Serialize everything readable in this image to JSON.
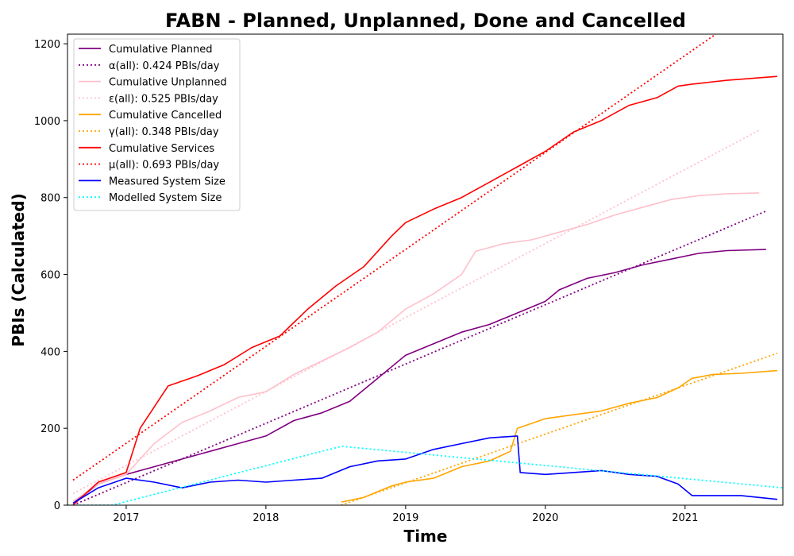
{
  "chart_data": {
    "type": "line",
    "title": "FABN - Planned, Unplanned, Done  and Cancelled",
    "xlabel": "Time",
    "ylabel": "PBIs (Calculated)",
    "xlim": [
      2016.58,
      2021.7
    ],
    "ylim": [
      0,
      1225
    ],
    "x_ticks": [
      2017,
      2018,
      2019,
      2020,
      2021
    ],
    "x_tick_labels": [
      "2017",
      "2018",
      "2019",
      "2020",
      "2021"
    ],
    "y_ticks": [
      0,
      200,
      400,
      600,
      800,
      1000,
      1200
    ],
    "y_tick_labels": [
      "0",
      "200",
      "400",
      "600",
      "800",
      "1000",
      "1200"
    ],
    "grid": false,
    "legend_position": "upper-left",
    "series": [
      {
        "name": "Cumulative Planned",
        "color": "#800080",
        "style": "solid",
        "x": [
          2016.62,
          2016.8,
          2017.0,
          2017.2,
          2017.4,
          2017.6,
          2017.8,
          2018.0,
          2018.2,
          2018.4,
          2018.6,
          2018.8,
          2019.0,
          2019.2,
          2019.4,
          2019.6,
          2019.8,
          2020.0,
          2020.1,
          2020.3,
          2020.5,
          2020.7,
          2020.9,
          2021.1,
          2021.3,
          2021.58
        ],
        "y": [
          5,
          55,
          80,
          100,
          120,
          140,
          160,
          180,
          220,
          240,
          270,
          330,
          390,
          420,
          450,
          470,
          500,
          530,
          560,
          590,
          605,
          625,
          640,
          655,
          662,
          665
        ]
      },
      {
        "name": "α(all): 0.424 PBIs/day",
        "color": "#800080",
        "style": "dotted",
        "x": [
          2016.62,
          2021.58
        ],
        "y": [
          0,
          765
        ]
      },
      {
        "name": "Cumulative Unplanned",
        "color": "#ffc0cb",
        "style": "solid",
        "x": [
          2016.62,
          2016.8,
          2017.0,
          2017.2,
          2017.4,
          2017.6,
          2017.8,
          2018.0,
          2018.2,
          2018.4,
          2018.6,
          2018.8,
          2019.0,
          2019.2,
          2019.4,
          2019.5,
          2019.7,
          2019.9,
          2020.1,
          2020.3,
          2020.5,
          2020.7,
          2020.9,
          2021.1,
          2021.3,
          2021.53
        ],
        "y": [
          10,
          55,
          80,
          160,
          215,
          245,
          280,
          295,
          340,
          375,
          410,
          450,
          510,
          550,
          600,
          660,
          680,
          690,
          710,
          730,
          755,
          775,
          795,
          805,
          810,
          812
        ]
      },
      {
        "name": "ε(all): 0.525 PBIs/day",
        "color": "#ffc0cb",
        "style": "dotted",
        "x": [
          2016.62,
          2021.53
        ],
        "y": [
          30,
          975
        ]
      },
      {
        "name": "Cumulative Cancelled",
        "color": "#ffa500",
        "style": "solid",
        "x": [
          2018.54,
          2018.7,
          2018.9,
          2019.0,
          2019.2,
          2019.4,
          2019.6,
          2019.75,
          2019.8,
          2020.0,
          2020.2,
          2020.4,
          2020.6,
          2020.8,
          2020.95,
          2021.05,
          2021.2,
          2021.4,
          2021.66
        ],
        "y": [
          8,
          20,
          50,
          60,
          70,
          100,
          115,
          140,
          200,
          225,
          235,
          245,
          265,
          280,
          305,
          330,
          340,
          343,
          350
        ]
      },
      {
        "name": "γ(all): 0.348 PBIs/day",
        "color": "#ffa500",
        "style": "dotted",
        "x": [
          2018.54,
          2021.66
        ],
        "y": [
          0,
          395
        ]
      },
      {
        "name": "Cumulative Services",
        "color": "#ff0000",
        "style": "solid",
        "x": [
          2016.62,
          2016.8,
          2017.0,
          2017.1,
          2017.3,
          2017.5,
          2017.7,
          2017.9,
          2018.1,
          2018.3,
          2018.5,
          2018.7,
          2018.9,
          2019.0,
          2019.2,
          2019.4,
          2019.6,
          2019.8,
          2020.0,
          2020.2,
          2020.4,
          2020.6,
          2020.8,
          2020.95,
          2021.05,
          2021.3,
          2021.66
        ],
        "y": [
          0,
          60,
          85,
          200,
          310,
          335,
          365,
          410,
          440,
          510,
          570,
          620,
          700,
          735,
          770,
          800,
          840,
          880,
          920,
          970,
          1000,
          1040,
          1060,
          1090,
          1095,
          1105,
          1115
        ]
      },
      {
        "name": "μ(all): 0.693 PBIs/day",
        "color": "#ff0000",
        "style": "dotted",
        "x": [
          2016.62,
          2021.22
        ],
        "y": [
          65,
          1225
        ]
      },
      {
        "name": "Measured System Size",
        "color": "#0000ff",
        "style": "solid",
        "x": [
          2016.62,
          2016.8,
          2017.0,
          2017.2,
          2017.4,
          2017.6,
          2017.8,
          2018.0,
          2018.2,
          2018.4,
          2018.6,
          2018.8,
          2019.0,
          2019.2,
          2019.4,
          2019.6,
          2019.8,
          2019.82,
          2020.0,
          2020.2,
          2020.4,
          2020.6,
          2020.8,
          2020.95,
          2021.05,
          2021.2,
          2021.4,
          2021.66
        ],
        "y": [
          5,
          45,
          70,
          60,
          45,
          60,
          65,
          60,
          65,
          70,
          100,
          115,
          120,
          145,
          160,
          175,
          180,
          85,
          80,
          85,
          90,
          80,
          75,
          55,
          25,
          25,
          25,
          15
        ]
      },
      {
        "name": "Modelled System Size",
        "color": "#00ffff",
        "style": "dotted",
        "x": [
          2016.58,
          2016.9,
          2018.54,
          2021.7
        ],
        "y": [
          0,
          0,
          153,
          45
        ]
      }
    ]
  }
}
